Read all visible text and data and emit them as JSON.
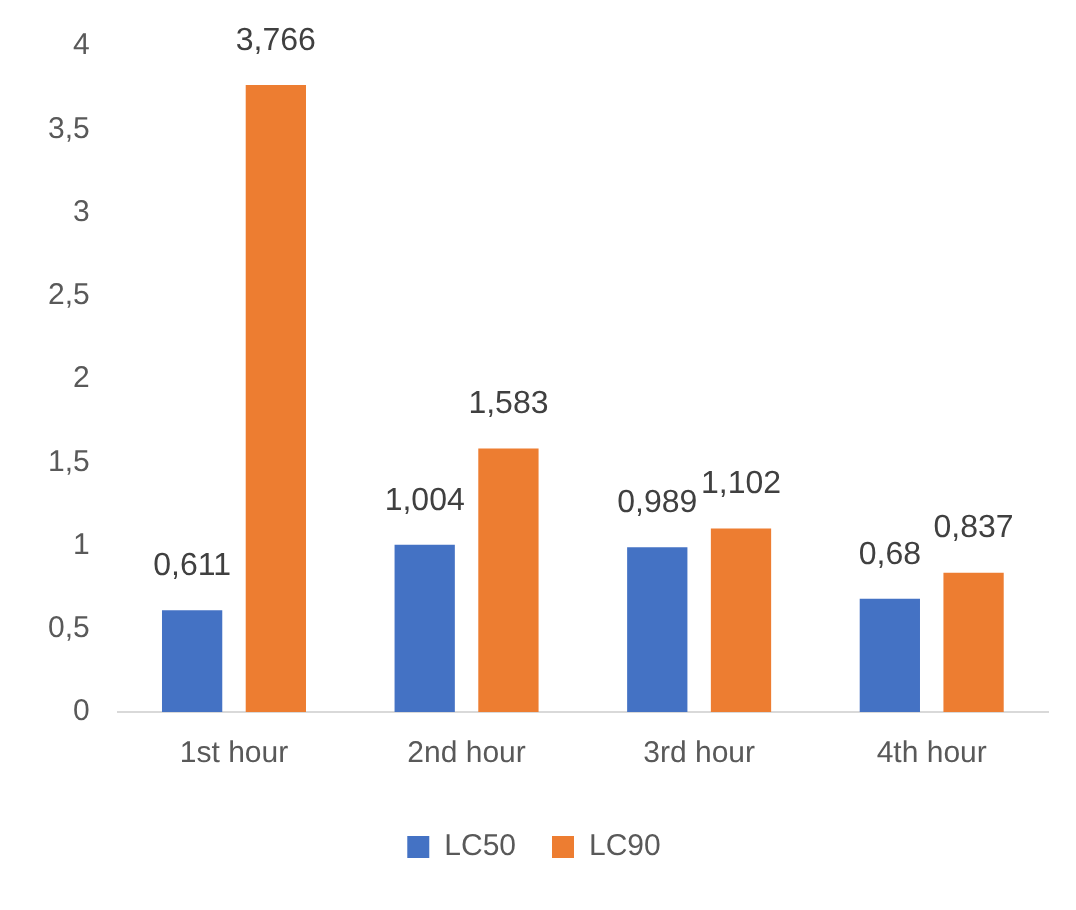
{
  "chart_data": {
    "type": "bar",
    "categories": [
      "1st hour",
      "2nd hour",
      "3rd hour",
      "4th hour"
    ],
    "series": [
      {
        "name": "LC50",
        "color": "#4472c4",
        "values": [
          0.611,
          1.004,
          0.989,
          0.68
        ],
        "value_labels": [
          "0,611",
          "1,004",
          "0,989",
          "0,68"
        ]
      },
      {
        "name": "LC90",
        "color": "#ed7d31",
        "values": [
          3.766,
          1.583,
          1.102,
          0.837
        ],
        "value_labels": [
          "3,766",
          "1,583",
          "1,102",
          "0,837"
        ]
      }
    ],
    "ylim": [
      0,
      4
    ],
    "yticks": [
      0,
      {
        "value": 0.5,
        "label": "0,5"
      },
      1,
      {
        "value": 1.5,
        "label": "1,5"
      },
      2,
      {
        "value": 2.5,
        "label": "2,5"
      },
      3,
      {
        "value": 3.5,
        "label": "3,5"
      },
      4
    ],
    "grid": false,
    "legend": "bottom"
  }
}
